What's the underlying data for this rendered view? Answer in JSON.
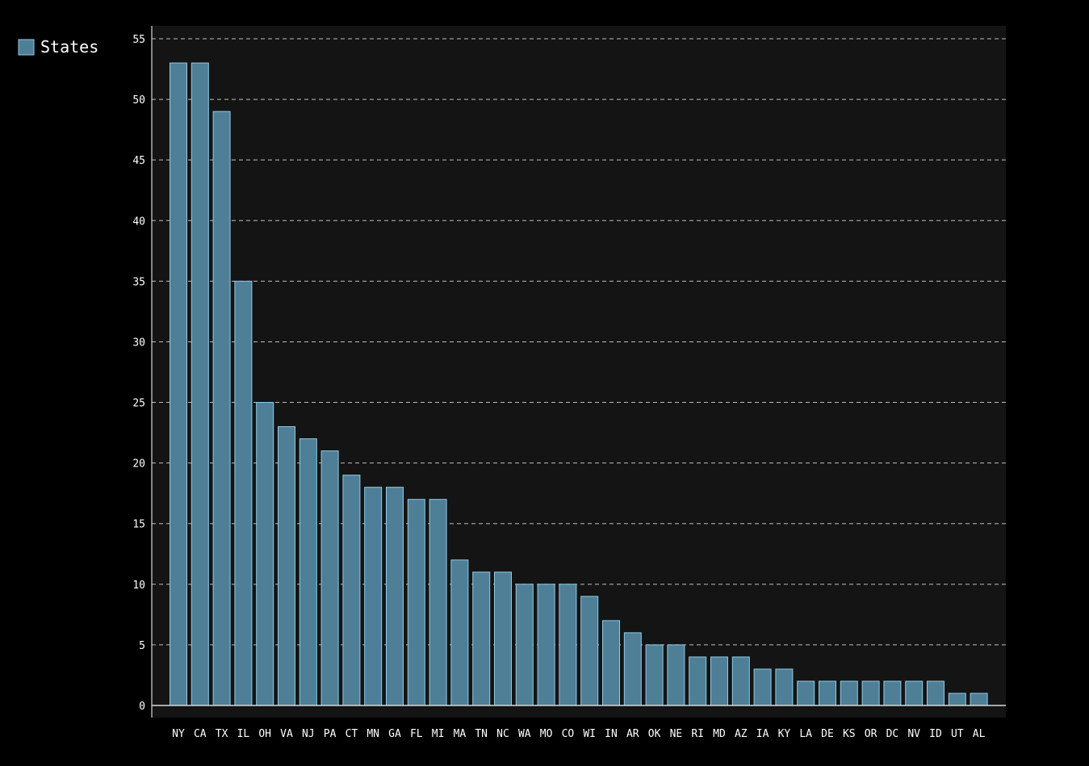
{
  "chart_data": {
    "type": "bar",
    "categories": [
      "NY",
      "CA",
      "TX",
      "IL",
      "OH",
      "VA",
      "NJ",
      "PA",
      "CT",
      "MN",
      "GA",
      "FL",
      "MI",
      "MA",
      "TN",
      "NC",
      "WA",
      "MO",
      "CO",
      "WI",
      "IN",
      "AR",
      "OK",
      "NE",
      "RI",
      "MD",
      "AZ",
      "IA",
      "KY",
      "LA",
      "DE",
      "KS",
      "OR",
      "DC",
      "NV",
      "ID",
      "UT",
      "AL"
    ],
    "series": [
      {
        "name": "States",
        "values": [
          53,
          53,
          49,
          35,
          25,
          23,
          22,
          21,
          19,
          18,
          18,
          17,
          17,
          12,
          11,
          11,
          10,
          10,
          10,
          9,
          7,
          6,
          5,
          5,
          4,
          4,
          4,
          3,
          3,
          2,
          2,
          2,
          2,
          2,
          2,
          2,
          1,
          1
        ]
      }
    ],
    "title": "",
    "xlabel": "",
    "ylabel": "",
    "ylim": [
      0,
      55
    ],
    "yticks": [
      0,
      5,
      10,
      15,
      20,
      25,
      30,
      35,
      40,
      45,
      50,
      55
    ],
    "grid": true,
    "legend_position": "top-left",
    "colors": {
      "page_background": "#000000",
      "plot_background": "#141414",
      "bar_fill": "#4e7f96",
      "bar_stroke": "#8fcbe6",
      "grid": "#bdbdbd",
      "axis": "#d8d8d8",
      "text": "#ffffff"
    }
  }
}
